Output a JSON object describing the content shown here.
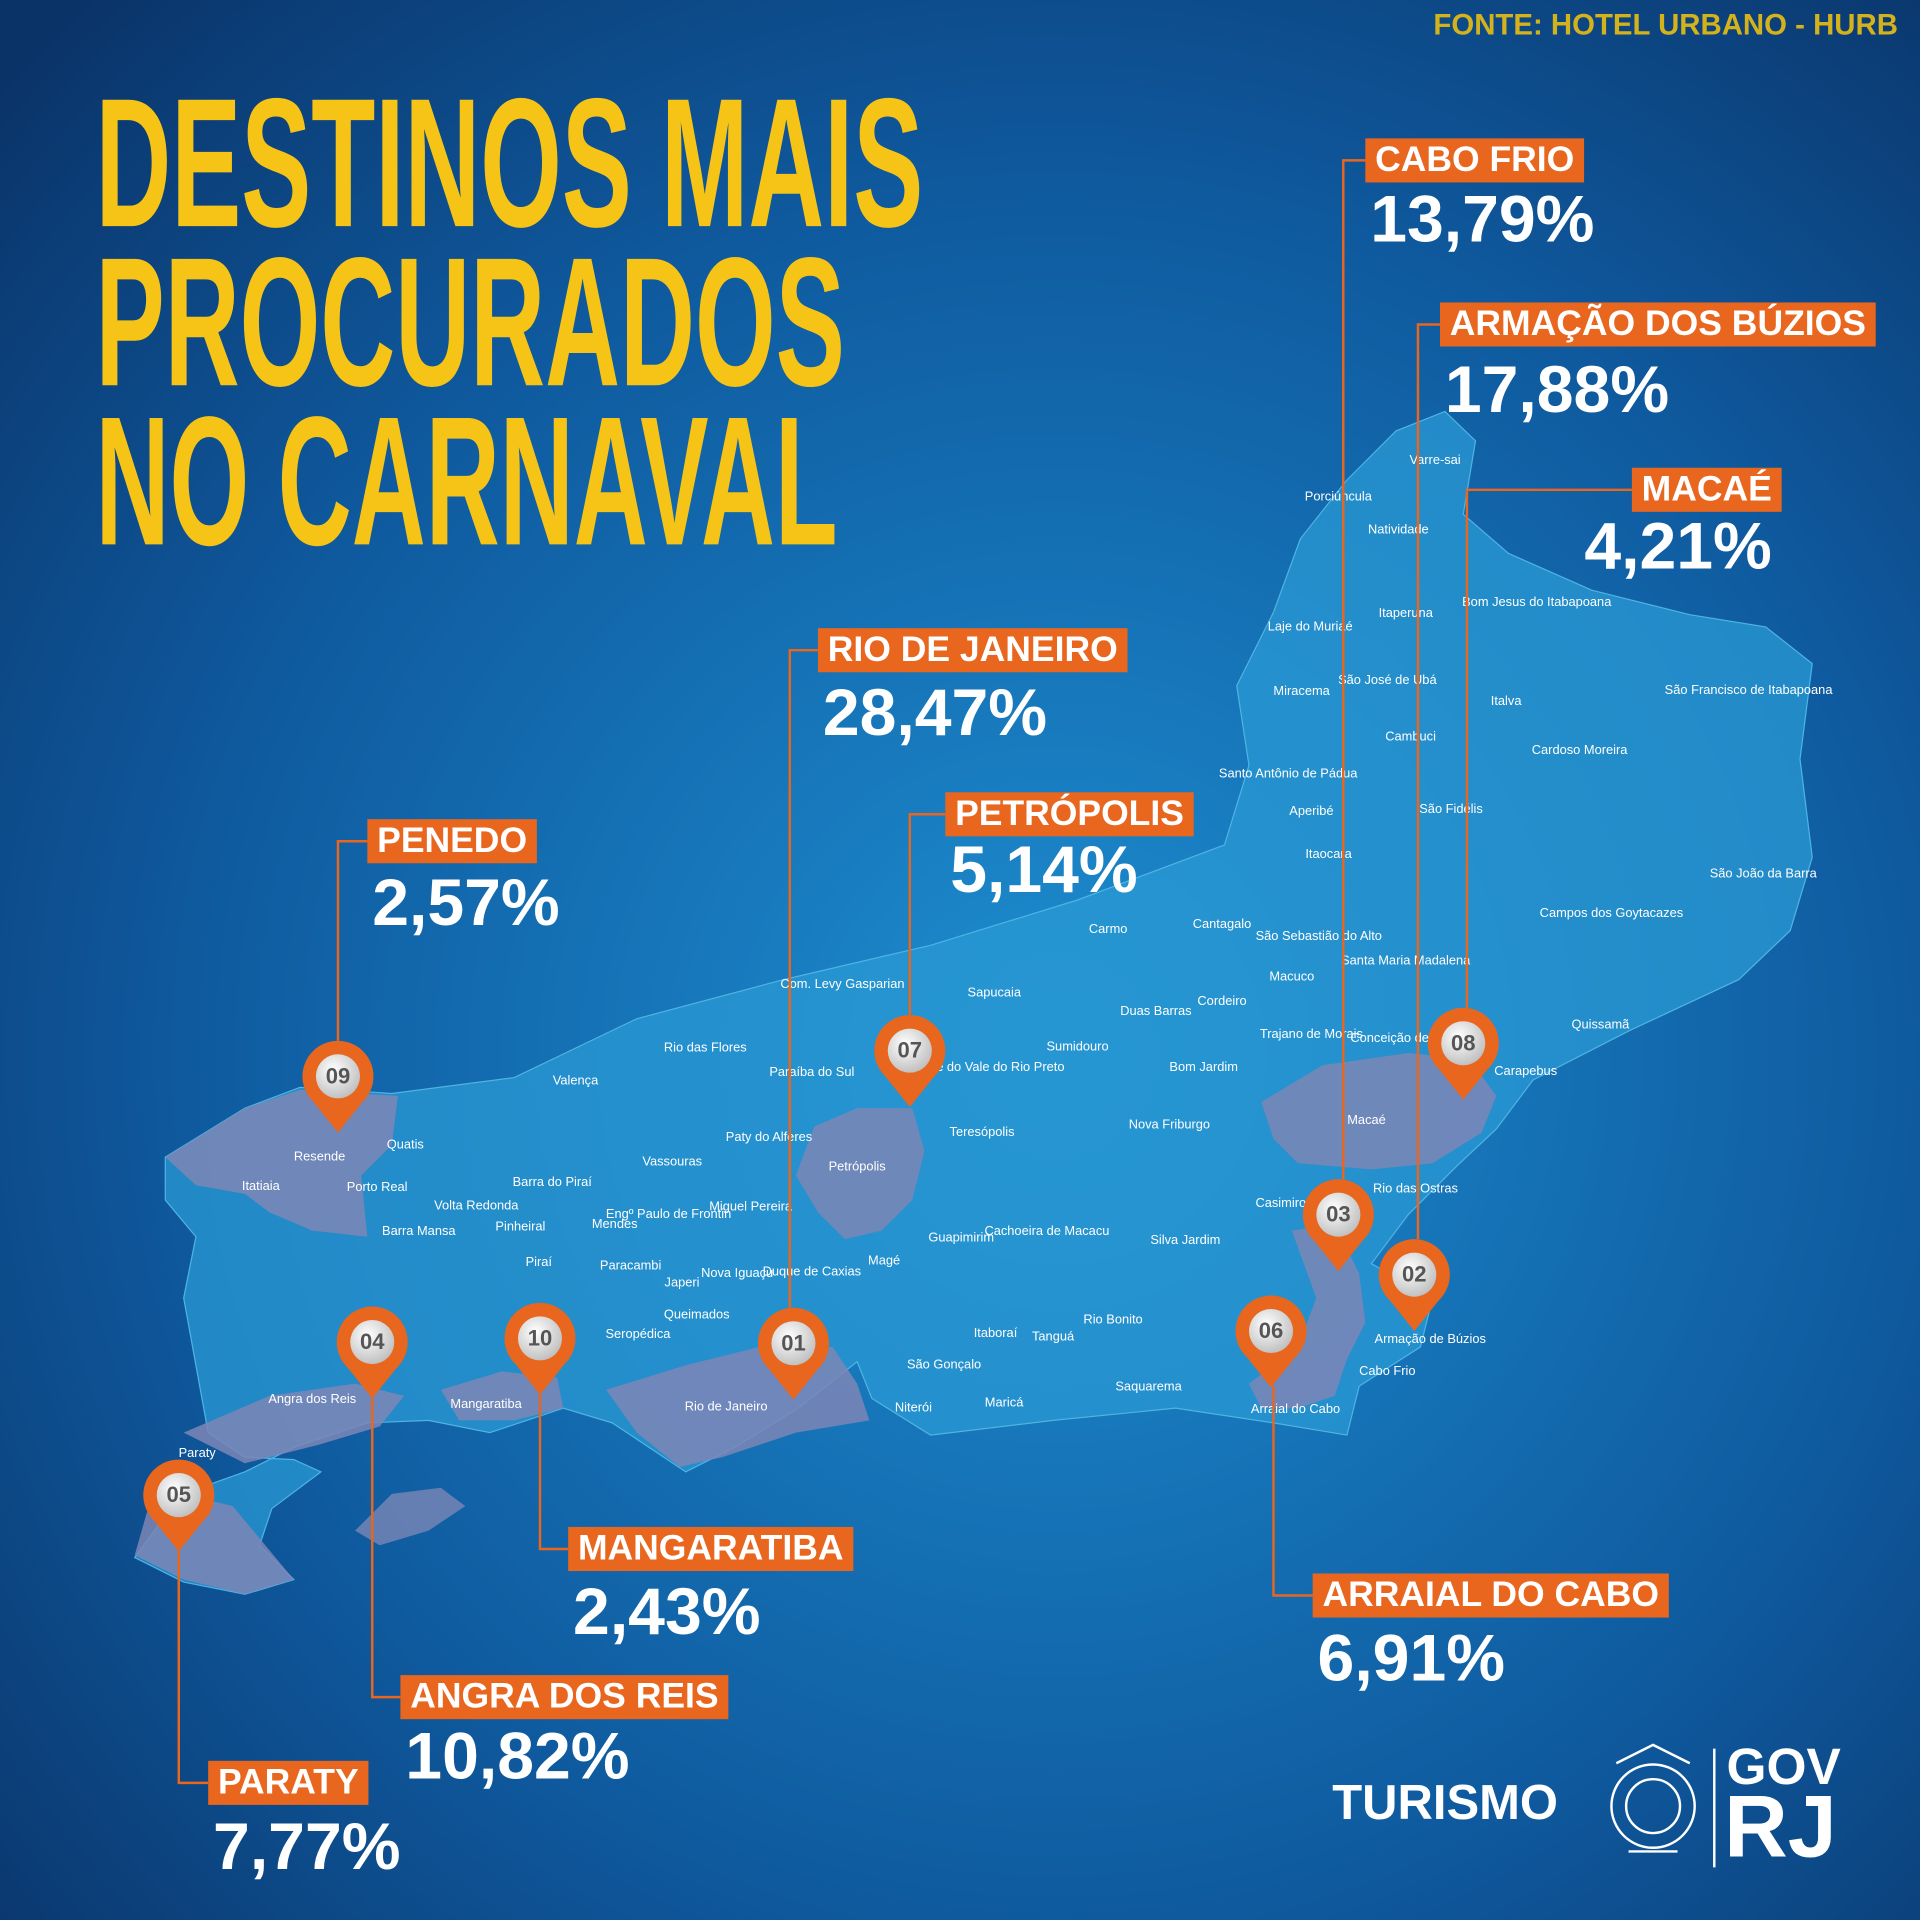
{
  "source": "FONTE: HOTEL URBANO - HURB",
  "title": [
    "DESTINOS MAIS",
    "PROCURADOS",
    "NO CARNAVAL"
  ],
  "destinations": [
    {
      "rank": "01",
      "name": "RIO DE JANEIRO",
      "share": "28,47%"
    },
    {
      "rank": "02",
      "name": "ARMAÇÃO DOS BÚZIOS",
      "share": "17,88%"
    },
    {
      "rank": "03",
      "name": "CABO FRIO",
      "share": "13,79%"
    },
    {
      "rank": "04",
      "name": "ANGRA DOS REIS",
      "share": "10,82%"
    },
    {
      "rank": "05",
      "name": "PARATY",
      "share": "7,77%"
    },
    {
      "rank": "06",
      "name": "ARRAIAL DO CABO",
      "share": "6,91%"
    },
    {
      "rank": "07",
      "name": "PETRÓPOLIS",
      "share": "5,14%"
    },
    {
      "rank": "08",
      "name": "MACAÉ",
      "share": "4,21%"
    },
    {
      "rank": "09",
      "name": "PENEDO",
      "share": "2,57%"
    },
    {
      "rank": "10",
      "name": "MANGARATIBA",
      "share": "2,43%"
    }
  ],
  "map_labels": [
    "Varre-sai",
    "Porciúncula",
    "Natividade",
    "Bom Jesus do Itabapoana",
    "Laje do Muriaé",
    "Itaperuna",
    "São José de Ubá",
    "Miracema",
    "Italva",
    "São Francisco de Itabapoana",
    "Cambuci",
    "Cardoso Moreira",
    "Santo Antônio de Pádua",
    "Aperibé",
    "São Fidélis",
    "Itaocara",
    "São João da Barra",
    "Campos dos Goytacazes",
    "Cantagalo",
    "São Sebastião do Alto",
    "Carmo",
    "Santa Maria Madalena",
    "Macuco",
    "Cordeiro",
    "Duas Barras",
    "Sapucaia",
    "Com. Levy Gasparian",
    "Trajano de Morais",
    "Quissamã",
    "Conceição de Macabu",
    "Carapebus",
    "Sumidouro",
    "Bom Jardim",
    "São José do Vale do Rio Preto",
    "Rio das Flores",
    "Paraíba do Sul",
    "Valença",
    "Macaé",
    "Teresópolis",
    "Nova Friburgo",
    "Paty do Alferes",
    "Petrópolis",
    "Vassouras",
    "Resende",
    "Quatis",
    "Itatiaia",
    "Porto Real",
    "Volta Redonda",
    "Barra do Piraí",
    "Engº Paulo de Frontin",
    "Miguel Pereira",
    "Rio das Ostras",
    "Casimiro",
    "Mendes",
    "Pinheiral",
    "Barra Mansa",
    "Guapimirim",
    "Cachoeira de Macacu",
    "Silva Jardim",
    "Piraí",
    "Paracambi",
    "Nova Iguaçu",
    "Duque de Caxias",
    "Magé",
    "Japeri",
    "Queimados",
    "Rio Bonito",
    "Seropédica",
    "Itaboraí",
    "Tanguá",
    "Armação de Búzios",
    "São Gonçalo",
    "Cabo Frio",
    "Angra dos Reis",
    "Mangaratiba",
    "Rio de Janeiro",
    "Saquarema",
    "Maricá",
    "Niterói",
    "Arraial do Cabo",
    "Paraty"
  ],
  "footer": {
    "brand": "TURISMO",
    "gov": "GOV",
    "state": "RJ"
  }
}
